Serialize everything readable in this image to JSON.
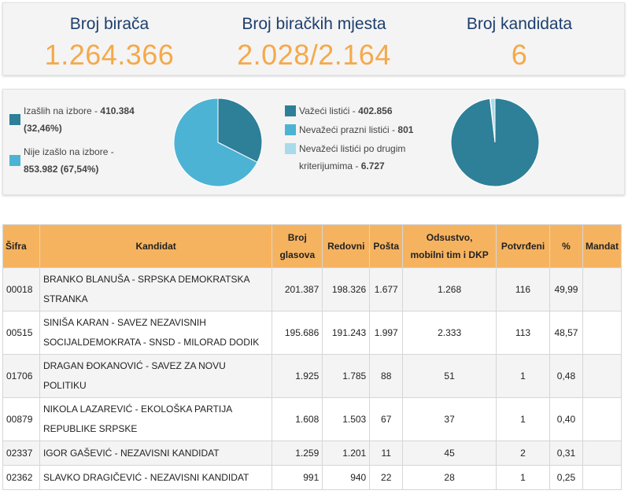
{
  "stats": [
    {
      "label": "Broj birača",
      "value": "1.264.366"
    },
    {
      "label": "Broj biračkih mjesta",
      "value": "2.028/2.164"
    },
    {
      "label": "Broj kandidata",
      "value": "6"
    }
  ],
  "turnout": {
    "items": [
      {
        "label": "Izašlih na izbore -",
        "value": "410.384",
        "extra": "(32,46%)",
        "percent": 32.46,
        "color": "#2e7f98"
      },
      {
        "label": "Nije izašlo na izbore -",
        "value": "853.982 (67,54%)",
        "percent": 67.54,
        "color": "#4db3d4"
      }
    ]
  },
  "ballots": {
    "items": [
      {
        "label": "Važeći listići -",
        "value": "402.856",
        "count": 402856,
        "color": "#2e7f98"
      },
      {
        "label": "Nevažeći prazni listići -",
        "value": "801",
        "count": 801,
        "color": "#4db3d4"
      },
      {
        "label": "Nevažeći listići po drugim",
        "label2": "kriterijumima -",
        "value": "6.727",
        "count": 6727,
        "color": "#a8daea"
      }
    ]
  },
  "table": {
    "headers": {
      "sifra": "Šifra",
      "kandidat": "Kandidat",
      "broj_line1": "Broj",
      "broj_line2": "glasova",
      "redovni": "Redovni",
      "posta": "Pošta",
      "odsustvo_line1": "Odsustvo,",
      "odsustvo_line2": "mobilni tim i DKP",
      "potvrdeni": "Potvrđeni",
      "procenat": "%",
      "mandat": "Mandat"
    },
    "rows": [
      {
        "sifra": "00018",
        "kandidat_line1": "BRANKO BLANUŠA - SRPSKA DEMOKRATSKA",
        "kandidat_line2": "STRANKA",
        "broj": "201.387",
        "redovni": "198.326",
        "posta": "1.677",
        "odsustvo": "1.268",
        "potvrdeni": "116",
        "procenat": "49,99",
        "mandat": ""
      },
      {
        "sifra": "00515",
        "kandidat_line1": "SINIŠA KARAN - SAVEZ NEZAVISNIH",
        "kandidat_line2": "SOCIJALDEMOKRATA - SNSD - MILORAD DODIK",
        "broj": "195.686",
        "redovni": "191.243",
        "posta": "1.997",
        "odsustvo": "2.333",
        "potvrdeni": "113",
        "procenat": "48,57",
        "mandat": ""
      },
      {
        "sifra": "01706",
        "kandidat_line1": "DRAGAN ĐOKANOVIĆ - SAVEZ ZA NOVU",
        "kandidat_line2": "POLITIKU",
        "broj": "1.925",
        "redovni": "1.785",
        "posta": "88",
        "odsustvo": "51",
        "potvrdeni": "1",
        "procenat": "0,48",
        "mandat": ""
      },
      {
        "sifra": "00879",
        "kandidat_line1": "NIKOLA LAZAREVIĆ - EKOLOŠKA PARTIJA",
        "kandidat_line2": "REPUBLIKE SRPSKE",
        "broj": "1.608",
        "redovni": "1.503",
        "posta": "67",
        "odsustvo": "37",
        "potvrdeni": "1",
        "procenat": "0,40",
        "mandat": ""
      },
      {
        "sifra": "02337",
        "kandidat_line1": "IGOR GAŠEVIĆ - NEZAVISNI KANDIDAT",
        "kandidat_line2": "",
        "broj": "1.259",
        "redovni": "1.201",
        "posta": "11",
        "odsustvo": "45",
        "potvrdeni": "2",
        "procenat": "0,31",
        "mandat": ""
      },
      {
        "sifra": "02362",
        "kandidat_line1": "SLAVKO DRAGIČEVIĆ - NEZAVISNI KANDIDAT",
        "kandidat_line2": "",
        "broj": "991",
        "redovni": "940",
        "posta": "22",
        "odsustvo": "28",
        "potvrdeni": "1",
        "procenat": "0,25",
        "mandat": ""
      }
    ]
  }
}
